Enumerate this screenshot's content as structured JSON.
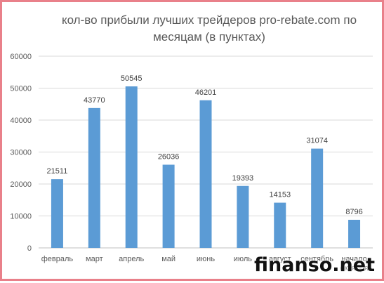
{
  "chart_data": {
    "type": "bar",
    "title": "кол-во прибыли лучших трейдеров pro-rebate.com по месяцам (в пунктах)",
    "categories": [
      "февраль",
      "март",
      "апрель",
      "май",
      "июнь",
      "июль",
      "август",
      "сентябрь",
      "начало октября"
    ],
    "values": [
      21511,
      43770,
      50545,
      26036,
      46201,
      19393,
      14153,
      31074,
      8796
    ],
    "data_labels": [
      "21511",
      "43770",
      "50545",
      "26036",
      "46201",
      "19393",
      "14153",
      "31074",
      "8796"
    ],
    "ylim": [
      0,
      60000
    ],
    "yticks": [
      0,
      10000,
      20000,
      30000,
      40000,
      50000,
      60000
    ],
    "ytick_labels": [
      "0",
      "10000",
      "20000",
      "30000",
      "40000",
      "50000",
      "60000"
    ],
    "grid": true,
    "bar_color": "#5b9bd5",
    "grid_color": "#d9d9d9",
    "xlabel": "",
    "ylabel": ""
  },
  "watermark": "finanso.net",
  "border_color": "#e9808a"
}
